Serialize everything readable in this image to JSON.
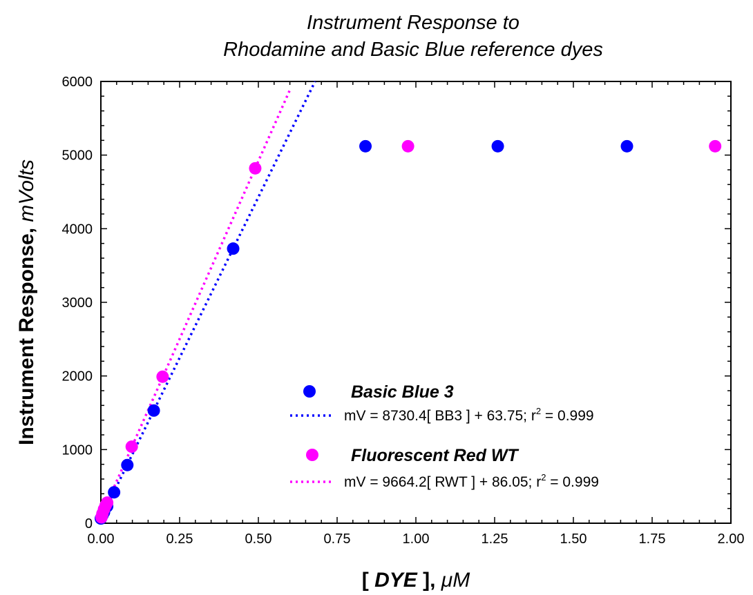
{
  "chart_data": {
    "type": "scatter",
    "title": [
      "Instrument Response to",
      "Rhodamine and Basic Blue reference dyes"
    ],
    "xlabel": {
      "bracket_open": "[ ",
      "main": "DYE",
      "bracket_close": " ], ",
      "unit": "μM"
    },
    "ylabel": {
      "main": "Instrument Response, ",
      "unit": "mVolts"
    },
    "xlim": [
      0,
      2.0
    ],
    "ylim": [
      0,
      6000
    ],
    "x_ticks": [
      "0.00",
      "0.25",
      "0.50",
      "0.75",
      "1.00",
      "1.25",
      "1.50",
      "1.75",
      "2.00"
    ],
    "y_ticks": [
      "0",
      "1000",
      "2000",
      "3000",
      "4000",
      "5000",
      "6000"
    ],
    "grid": false,
    "legend_position": "lower-right",
    "series": [
      {
        "name": "Basic Blue 3",
        "color": "#0000ff",
        "points": [
          [
            0.0,
            64
          ],
          [
            0.005,
            110
          ],
          [
            0.01,
            150
          ],
          [
            0.02,
            230
          ],
          [
            0.042,
            420
          ],
          [
            0.084,
            790
          ],
          [
            0.168,
            1530
          ],
          [
            0.42,
            3730
          ],
          [
            0.84,
            5120
          ],
          [
            1.26,
            5120
          ],
          [
            1.67,
            5120
          ]
        ],
        "fit": {
          "label_prefix": "mV = 8730.4[ BB3 ] + 63.75; r",
          "label_sup": "2",
          "label_suffix": " = 0.999",
          "slope": 8730.4,
          "intercept": 63.75,
          "x_range": [
            0,
            0.68
          ]
        }
      },
      {
        "name": "Fluorescent Red WT",
        "color": "#ff00ff",
        "points": [
          [
            0.002,
            80
          ],
          [
            0.005,
            130
          ],
          [
            0.01,
            190
          ],
          [
            0.015,
            240
          ],
          [
            0.02,
            280
          ],
          [
            0.098,
            1040
          ],
          [
            0.196,
            1990
          ],
          [
            0.49,
            4820
          ],
          [
            0.975,
            5120
          ],
          [
            1.95,
            5120
          ]
        ],
        "fit": {
          "label_prefix": "mV = 9664.2[ RWT ] + 86.05; r",
          "label_sup": "2",
          "label_suffix": " = 0.999",
          "slope": 9664.2,
          "intercept": 86.05,
          "x_range": [
            0,
            0.6
          ]
        }
      }
    ]
  }
}
